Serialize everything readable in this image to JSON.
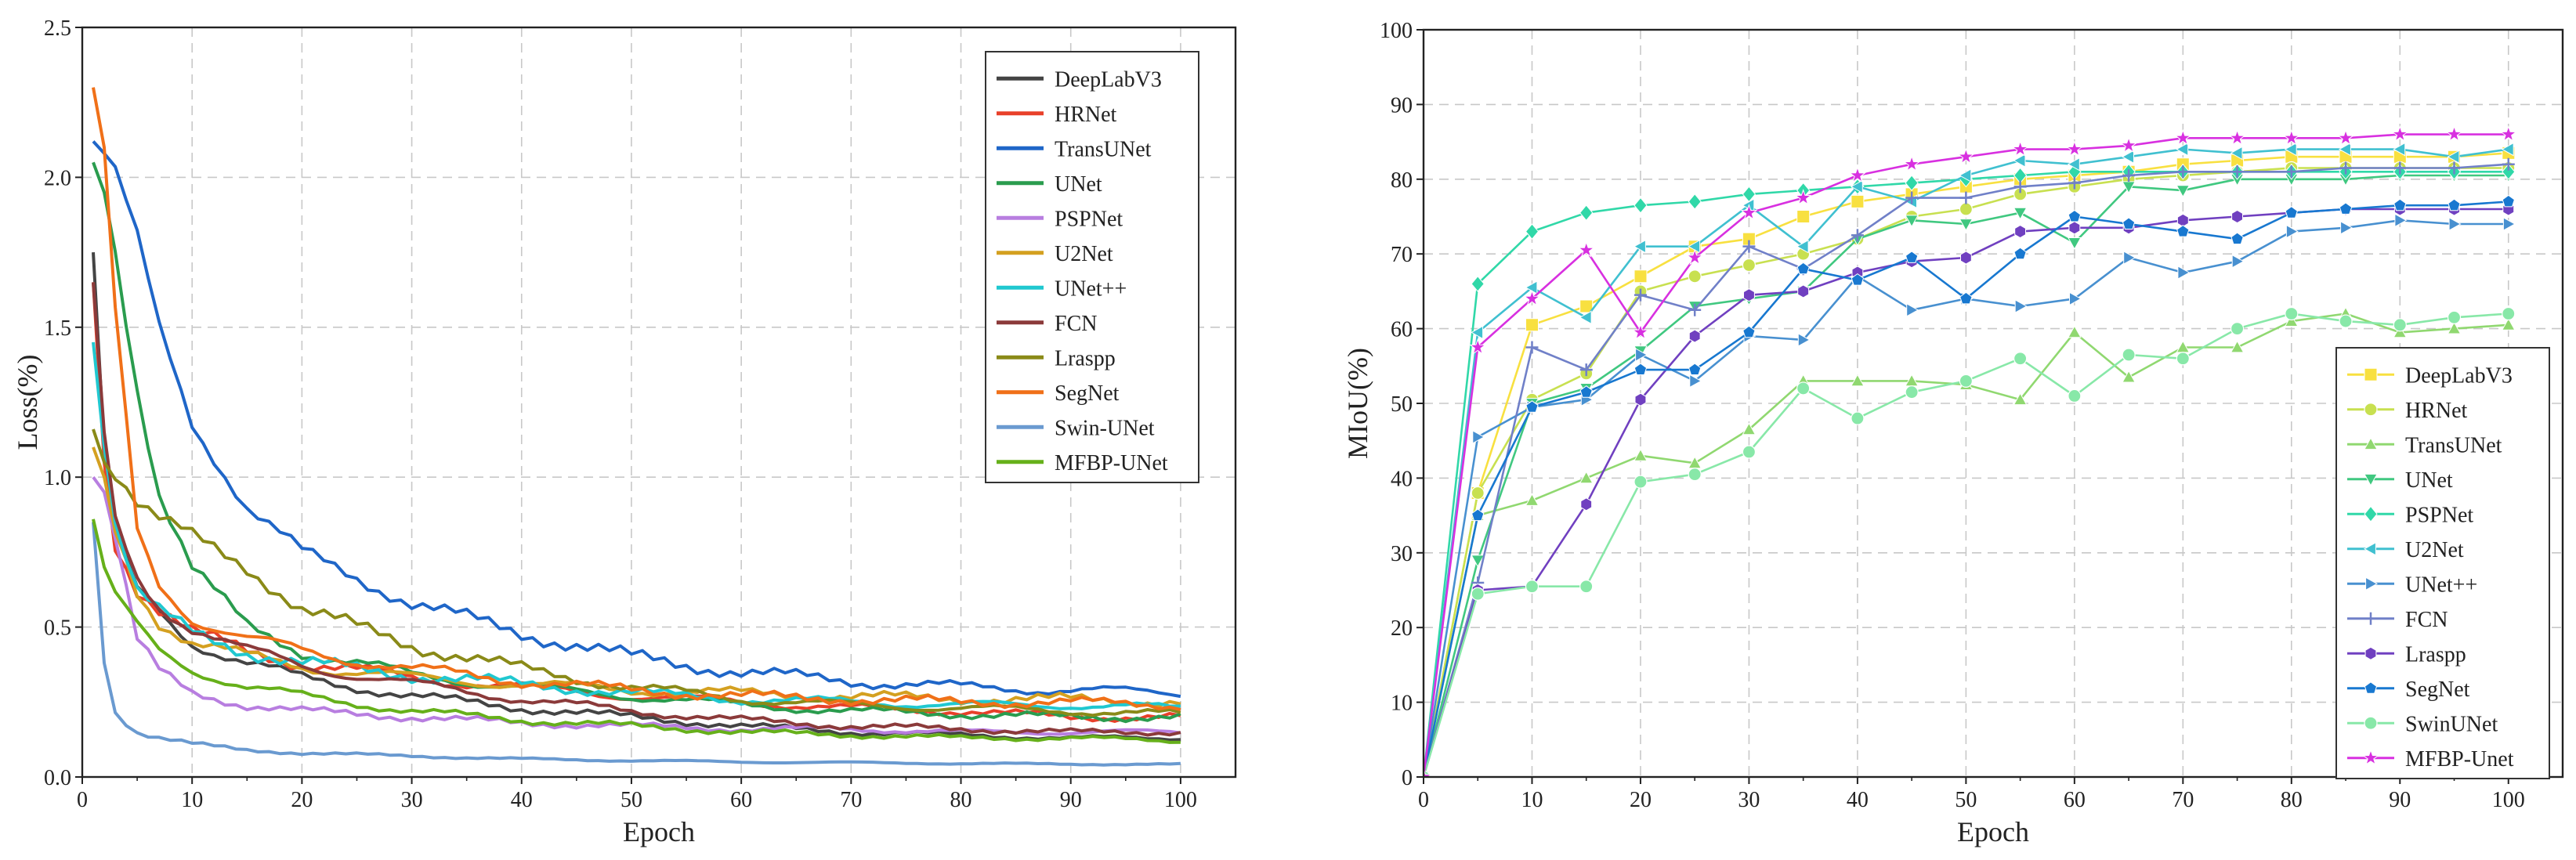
{
  "chart_data": [
    {
      "type": "line",
      "title": "",
      "xlabel": "Epoch",
      "ylabel": "Loss(%)",
      "xlim": [
        0,
        105
      ],
      "ylim": [
        0,
        2.5
      ],
      "xticks": [
        0,
        10,
        20,
        30,
        40,
        50,
        60,
        70,
        80,
        90,
        100
      ],
      "yticks": [
        0.0,
        0.5,
        1.0,
        1.5,
        2.0,
        2.5
      ],
      "ytick_labels": [
        "0.0",
        "0.5",
        "1.0",
        "1.5",
        "2.0",
        "2.5"
      ],
      "grid": true,
      "legend": "top-right",
      "x_points": [
        1,
        2,
        3,
        5,
        7,
        10,
        15,
        20,
        30,
        40,
        50,
        60,
        70,
        80,
        90,
        100
      ],
      "series": [
        {
          "name": "DeepLabV3",
          "color": "#444444",
          "values": [
            1.75,
            1.1,
            0.8,
            0.62,
            0.55,
            0.45,
            0.38,
            0.33,
            0.27,
            0.23,
            0.2,
            0.17,
            0.15,
            0.14,
            0.13,
            0.13
          ]
        },
        {
          "name": "HRNet",
          "color": "#e8402a",
          "values": [
            1.65,
            1.05,
            0.78,
            0.63,
            0.56,
            0.48,
            0.42,
            0.38,
            0.33,
            0.3,
            0.27,
            0.25,
            0.23,
            0.22,
            0.2,
            0.2
          ]
        },
        {
          "name": "TransUNet",
          "color": "#1f66c8",
          "values": [
            2.12,
            2.08,
            2.02,
            1.8,
            1.5,
            1.18,
            0.9,
            0.75,
            0.58,
            0.48,
            0.4,
            0.35,
            0.32,
            0.3,
            0.29,
            0.28
          ]
        },
        {
          "name": "UNet",
          "color": "#2a9c4e",
          "values": [
            2.05,
            1.95,
            1.75,
            1.3,
            0.95,
            0.7,
            0.5,
            0.42,
            0.34,
            0.3,
            0.27,
            0.24,
            0.22,
            0.21,
            0.2,
            0.2
          ]
        },
        {
          "name": "PSPNet",
          "color": "#b87ee0",
          "values": [
            1.0,
            0.95,
            0.8,
            0.45,
            0.35,
            0.28,
            0.24,
            0.22,
            0.2,
            0.18,
            0.17,
            0.16,
            0.16,
            0.15,
            0.15,
            0.15
          ]
        },
        {
          "name": "U2Net",
          "color": "#d4a020",
          "values": [
            1.1,
            1.0,
            0.82,
            0.62,
            0.52,
            0.45,
            0.4,
            0.37,
            0.33,
            0.31,
            0.29,
            0.28,
            0.27,
            0.26,
            0.26,
            0.25
          ]
        },
        {
          "name": "UNet++",
          "color": "#20c8d0",
          "values": [
            1.45,
            1.1,
            0.85,
            0.62,
            0.55,
            0.48,
            0.42,
            0.38,
            0.34,
            0.31,
            0.28,
            0.26,
            0.25,
            0.24,
            0.24,
            0.23
          ]
        },
        {
          "name": "FCN",
          "color": "#8b3a3a",
          "values": [
            1.65,
            1.15,
            0.85,
            0.66,
            0.57,
            0.5,
            0.42,
            0.37,
            0.31,
            0.26,
            0.22,
            0.19,
            0.17,
            0.16,
            0.15,
            0.15
          ]
        },
        {
          "name": "Lraspp",
          "color": "#8a8a18",
          "values": [
            1.16,
            1.05,
            1.02,
            0.92,
            0.86,
            0.8,
            0.7,
            0.56,
            0.44,
            0.36,
            0.3,
            0.26,
            0.24,
            0.23,
            0.22,
            0.21
          ]
        },
        {
          "name": "SegNet",
          "color": "#f07018",
          "values": [
            2.3,
            2.1,
            1.55,
            0.82,
            0.64,
            0.53,
            0.46,
            0.42,
            0.36,
            0.32,
            0.29,
            0.27,
            0.26,
            0.25,
            0.25,
            0.24
          ]
        },
        {
          "name": "Swin-UNet",
          "color": "#6a9ad0",
          "values": [
            0.85,
            0.38,
            0.22,
            0.15,
            0.13,
            0.11,
            0.09,
            0.08,
            0.07,
            0.06,
            0.055,
            0.05,
            0.048,
            0.045,
            0.043,
            0.042
          ]
        },
        {
          "name": "MFBP-UNet",
          "color": "#66b01a",
          "values": [
            0.86,
            0.7,
            0.6,
            0.5,
            0.42,
            0.36,
            0.3,
            0.27,
            0.22,
            0.19,
            0.17,
            0.15,
            0.14,
            0.13,
            0.13,
            0.12
          ]
        }
      ]
    },
    {
      "type": "line",
      "title": "",
      "xlabel": "Epoch",
      "ylabel": "MIoU(%)",
      "xlim": [
        0,
        105
      ],
      "ylim": [
        0,
        100
      ],
      "xticks": [
        0,
        10,
        20,
        30,
        40,
        50,
        60,
        70,
        80,
        90,
        100
      ],
      "yticks": [
        0,
        10,
        20,
        30,
        40,
        50,
        60,
        70,
        80,
        90,
        100
      ],
      "ytick_labels": [
        "0",
        "10",
        "20",
        "30",
        "40",
        "50",
        "60",
        "70",
        "80",
        "90",
        "100"
      ],
      "grid": true,
      "legend": "bottom-right",
      "x": [
        0,
        5,
        10,
        15,
        20,
        25,
        30,
        35,
        40,
        45,
        50,
        55,
        60,
        65,
        70,
        75,
        80,
        85,
        90,
        95,
        100
      ],
      "series": [
        {
          "name": "DeepLabV3",
          "color": "#f8e040",
          "marker": "square",
          "values": [
            0,
            38,
            60.5,
            63,
            67,
            71,
            72,
            75,
            77,
            78,
            79,
            80,
            80.5,
            81,
            82,
            82.5,
            83,
            83,
            83,
            83,
            83.5
          ]
        },
        {
          "name": "HRNet",
          "color": "#c8e050",
          "marker": "circle",
          "values": [
            0,
            38,
            50.5,
            54,
            65,
            67,
            68.5,
            70,
            72,
            75,
            76,
            78,
            79,
            80,
            80.5,
            81,
            81.5,
            81.5,
            81.5,
            81.5,
            81.5
          ]
        },
        {
          "name": "TransUNet",
          "color": "#90d870",
          "marker": "triangle-up",
          "values": [
            0,
            35,
            37,
            40,
            43,
            42,
            46.5,
            53,
            53,
            53,
            52.5,
            50.5,
            59.5,
            53.5,
            57.5,
            57.5,
            61,
            62,
            59.5,
            60,
            60.5
          ]
        },
        {
          "name": "UNet",
          "color": "#40c880",
          "marker": "triangle-down",
          "values": [
            0,
            29,
            50,
            52,
            57,
            63,
            64,
            65,
            72,
            74.5,
            74,
            75.5,
            71.5,
            79,
            78.5,
            80,
            80,
            80,
            80.5,
            80.5,
            80.5
          ]
        },
        {
          "name": "PSPNet",
          "color": "#30d8a8",
          "marker": "diamond",
          "values": [
            0,
            66,
            73,
            75.5,
            76.5,
            77,
            78,
            78.5,
            79,
            79.5,
            80,
            80.5,
            81,
            81,
            81,
            81,
            81,
            81,
            81,
            81,
            81
          ]
        },
        {
          "name": "U2Net",
          "color": "#40c0d0",
          "marker": "triangle-left",
          "values": [
            0,
            59.5,
            65.5,
            61.5,
            71,
            71,
            76.5,
            71,
            79,
            77,
            80.5,
            82.5,
            82,
            83,
            84,
            83.5,
            84,
            84,
            84,
            83,
            84
          ]
        },
        {
          "name": "UNet++",
          "color": "#4890d0",
          "marker": "triangle-right",
          "values": [
            0,
            45.5,
            49.5,
            50.5,
            56.5,
            53,
            59,
            58.5,
            67,
            62.5,
            64,
            63,
            64,
            69.5,
            67.5,
            69,
            73,
            73.5,
            74.5,
            74,
            74
          ]
        },
        {
          "name": "FCN",
          "color": "#7080c8",
          "marker": "plus",
          "values": [
            0,
            26,
            57.5,
            54.5,
            64.5,
            62.5,
            71,
            68,
            72.5,
            77.5,
            77.5,
            79,
            79.5,
            80.5,
            81,
            81,
            81,
            81.5,
            81.5,
            81.5,
            82
          ]
        },
        {
          "name": "Lraspp",
          "color": "#7040c0",
          "marker": "hexagon",
          "values": [
            0,
            25,
            25.5,
            36.5,
            50.5,
            59,
            64.5,
            65,
            67.5,
            69,
            69.5,
            73,
            73.5,
            73.5,
            74.5,
            75,
            75.5,
            76,
            76,
            76,
            76
          ]
        },
        {
          "name": "SegNet",
          "color": "#1878d0",
          "marker": "pentagon",
          "values": [
            0,
            35,
            49.5,
            51.5,
            54.5,
            54.5,
            59.5,
            68,
            66.5,
            69.5,
            64,
            70,
            75,
            74,
            73,
            72,
            75.5,
            76,
            76.5,
            76.5,
            77
          ]
        },
        {
          "name": "SwinUNet",
          "color": "#88e8a8",
          "marker": "circle",
          "values": [
            0,
            24.5,
            25.5,
            25.5,
            39.5,
            40.5,
            43.5,
            52,
            48,
            51.5,
            53,
            56,
            51,
            56.5,
            56,
            60,
            62,
            61,
            60.5,
            61.5,
            62
          ]
        },
        {
          "name": "MFBP-Unet",
          "color": "#d830e0",
          "marker": "star",
          "values": [
            0,
            57.5,
            64,
            70.5,
            59.5,
            69.5,
            75.5,
            77.5,
            80.5,
            82,
            83,
            84,
            84,
            84.5,
            85.5,
            85.5,
            85.5,
            85.5,
            86,
            86,
            86
          ]
        }
      ]
    }
  ]
}
